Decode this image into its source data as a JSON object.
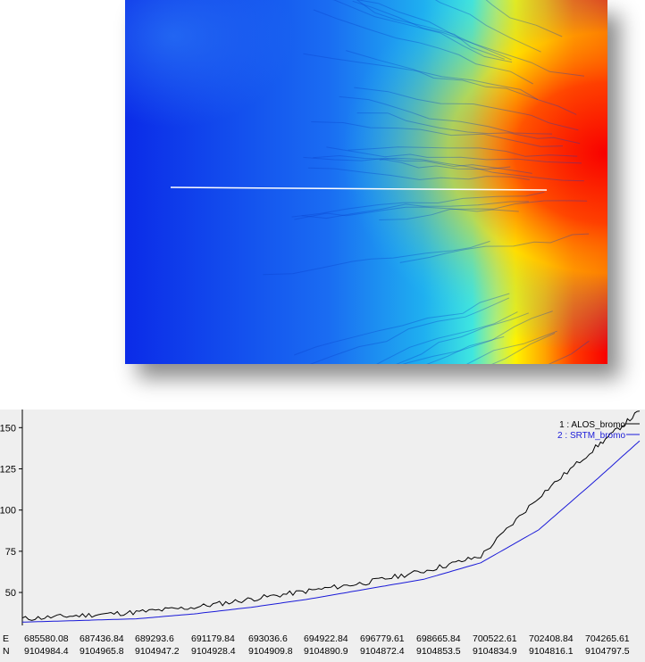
{
  "map": {
    "palette": [
      "#0b2be8",
      "#1a6cf2",
      "#1fb0f0",
      "#3fe6e0",
      "#b6f070",
      "#fff200",
      "#ffa400",
      "#ff3a00",
      "#f80000"
    ]
  },
  "profile": {
    "e_label": "E",
    "n_label": "N",
    "e_values": [
      "685580.08",
      "687436.84",
      "689293.6",
      "691179.84",
      "693036.6",
      "694922.84",
      "696779.61",
      "698665.84",
      "700522.61",
      "702408.84",
      "704265.61"
    ],
    "n_values": [
      "9104984.4",
      "9104965.8",
      "9104947.2",
      "9104928.4",
      "9104909.8",
      "9104890.9",
      "9104872.4",
      "9104853.5",
      "9104834.9",
      "9104816.1",
      "9104797.5"
    ]
  },
  "chart_data": {
    "type": "line",
    "title": "",
    "xlabel": "",
    "ylabel": "",
    "y_ticks": [
      "50",
      "75",
      "100",
      "125",
      "150"
    ],
    "ylim": [
      30,
      161
    ],
    "x": [
      685580.08,
      687436.84,
      689293.6,
      691179.84,
      693036.6,
      694922.84,
      696779.61,
      698665.84,
      700522.61,
      702408.84,
      704265.61,
      705700
    ],
    "series": [
      {
        "name": "1 : ALOS_bromo",
        "color": "#000000",
        "values": [
          34,
          36,
          38,
          41,
          46,
          51,
          56,
          63,
          72,
          108,
          138,
          160
        ]
      },
      {
        "name": "2 : SRTM_bromo",
        "color": "#1a1ad8",
        "values": [
          32,
          33,
          34,
          37,
          41,
          46,
          52,
          58,
          68,
          88,
          118,
          142
        ]
      }
    ],
    "legend_position": "top-right",
    "grid": false
  }
}
